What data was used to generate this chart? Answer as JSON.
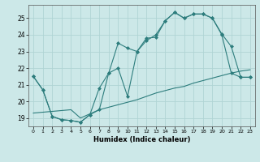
{
  "xlabel": "Humidex (Indice chaleur)",
  "bg_color": "#cce8e8",
  "line_color": "#2d7d7d",
  "grid_color": "#b0d4d4",
  "xlim": [
    -0.5,
    23.5
  ],
  "ylim": [
    18.5,
    25.8
  ],
  "xticks": [
    0,
    1,
    2,
    3,
    4,
    5,
    6,
    7,
    8,
    9,
    10,
    11,
    12,
    13,
    14,
    15,
    16,
    17,
    18,
    19,
    20,
    21,
    22,
    23
  ],
  "yticks": [
    19,
    20,
    21,
    22,
    23,
    24,
    25
  ],
  "line1_x": [
    0,
    1,
    2,
    3,
    4,
    5,
    6,
    7,
    8,
    9,
    10,
    11,
    12,
    13,
    14,
    15,
    16,
    17,
    18,
    19,
    20,
    21,
    22,
    23
  ],
  "line1_y": [
    21.5,
    20.7,
    19.1,
    18.9,
    18.85,
    18.75,
    19.2,
    20.8,
    21.7,
    23.5,
    23.2,
    23.0,
    23.8,
    23.85,
    24.85,
    25.35,
    25.0,
    25.25,
    25.25,
    25.0,
    24.0,
    21.7,
    21.45,
    21.45
  ],
  "line2_x": [
    0,
    1,
    2,
    3,
    4,
    5,
    6,
    7,
    8,
    9,
    10,
    11,
    12,
    13,
    14,
    15,
    16,
    17,
    18,
    19,
    20,
    21,
    22,
    23
  ],
  "line2_y": [
    21.5,
    20.7,
    19.1,
    18.9,
    18.85,
    18.75,
    19.2,
    19.5,
    21.7,
    22.0,
    20.3,
    23.0,
    23.65,
    24.0,
    24.85,
    25.35,
    25.0,
    25.25,
    25.25,
    25.0,
    24.05,
    23.3,
    21.45,
    21.45
  ],
  "line3_x": [
    0,
    1,
    2,
    3,
    4,
    5,
    6,
    7,
    8,
    9,
    10,
    11,
    12,
    13,
    14,
    15,
    16,
    17,
    18,
    19,
    20,
    21,
    22,
    23
  ],
  "line3_y": [
    19.3,
    19.35,
    19.4,
    19.45,
    19.5,
    19.0,
    19.25,
    19.5,
    19.65,
    19.8,
    19.95,
    20.1,
    20.3,
    20.5,
    20.65,
    20.8,
    20.9,
    21.1,
    21.25,
    21.4,
    21.55,
    21.7,
    21.82,
    21.9
  ]
}
